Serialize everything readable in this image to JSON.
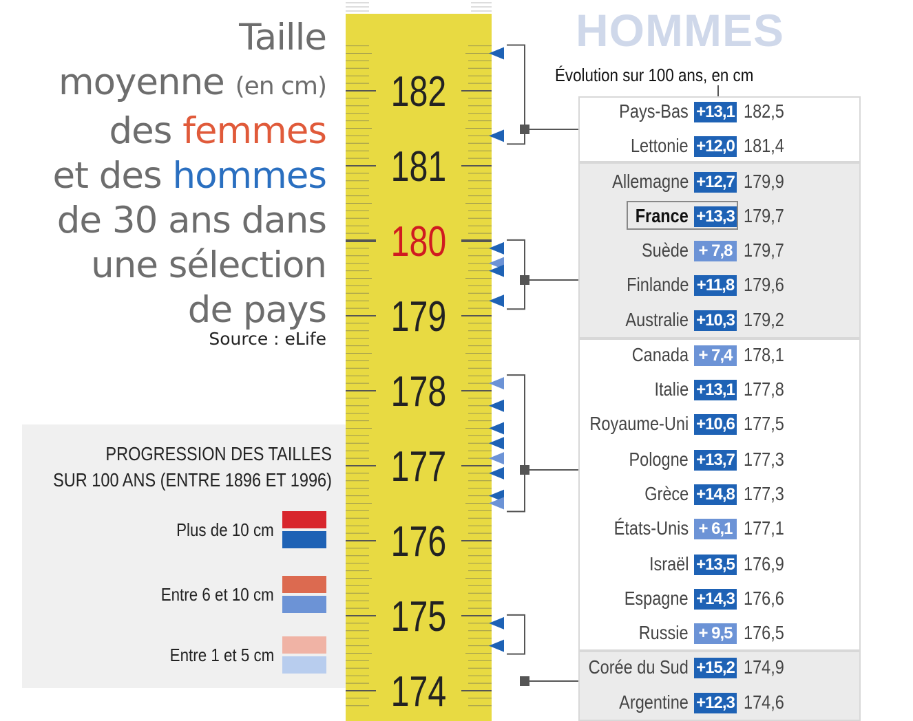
{
  "title": {
    "line1": "Taille",
    "line2_main": "moyenne",
    "line2_small": "(en cm)",
    "line3_prefix": "des ",
    "line3_word": "femmes",
    "line4_prefix": "et des ",
    "line4_word": "hommes",
    "line5": "de 30 ans dans",
    "line6": "une sélection",
    "line7": "de pays",
    "source": "Source : eLife"
  },
  "legend": {
    "title_line1": "PROGRESSION DES TAILLES",
    "title_line2": "SUR 100 ANS (ENTRE 1896 ET 1996)",
    "items": [
      {
        "label": "Plus de 10 cm",
        "colors": [
          "#d8262d",
          "#1e62b5"
        ]
      },
      {
        "label": "Entre 6 et 10 cm",
        "colors": [
          "#dc6a50",
          "#6c93d6"
        ]
      },
      {
        "label": "Entre 1 et 5 cm",
        "colors": [
          "#f0b3a5",
          "#b8cdee"
        ]
      }
    ]
  },
  "colors": {
    "ruler_yellow": "#e8da42",
    "highlight_tick": "#d01b20",
    "badge_strong": "#1e62b5",
    "badge_medium": "#6c93d6",
    "bracket": "#555555"
  },
  "right_panel": {
    "title": "HOMMES",
    "subtitle": "Évolution sur 100 ans, en cm"
  },
  "chart_data": {
    "type": "table",
    "title": "HOMMES",
    "subtitle": "Évolution sur 100 ans, en cm",
    "ruler_ticks": [
      "182",
      "181",
      "180",
      "179",
      "178",
      "177",
      "176",
      "175",
      "174"
    ],
    "highlight_tick": "180",
    "ylim": [
      173.8,
      182.6
    ],
    "unit": "cm",
    "rows": [
      {
        "country": "Pays-Bas",
        "progress": "+13,1",
        "progress_value": 13.1,
        "height": "182,5",
        "height_value": 182.5
      },
      {
        "country": "Lettonie",
        "progress": "+12,0",
        "progress_value": 12.0,
        "height": "181,4",
        "height_value": 181.4
      },
      {
        "country": "Allemagne",
        "progress": "+12,7",
        "progress_value": 12.7,
        "height": "179,9",
        "height_value": 179.9
      },
      {
        "country": "France",
        "progress": "+13,3",
        "progress_value": 13.3,
        "height": "179,7",
        "height_value": 179.7,
        "highlight": true
      },
      {
        "country": "Suède",
        "progress": "+ 7,8",
        "progress_value": 7.8,
        "height": "179,7",
        "height_value": 179.7
      },
      {
        "country": "Finlande",
        "progress": "+11,8",
        "progress_value": 11.8,
        "height": "179,6",
        "height_value": 179.6
      },
      {
        "country": "Australie",
        "progress": "+10,3",
        "progress_value": 10.3,
        "height": "179,2",
        "height_value": 179.2
      },
      {
        "country": "Canada",
        "progress": "+ 7,4",
        "progress_value": 7.4,
        "height": "178,1",
        "height_value": 178.1
      },
      {
        "country": "Italie",
        "progress": "+13,1",
        "progress_value": 13.1,
        "height": "177,8",
        "height_value": 177.8
      },
      {
        "country": "Royaume-Uni",
        "progress": "+10,6",
        "progress_value": 10.6,
        "height": "177,5",
        "height_value": 177.5
      },
      {
        "country": "Pologne",
        "progress": "+13,7",
        "progress_value": 13.7,
        "height": "177,3",
        "height_value": 177.3
      },
      {
        "country": "Grèce",
        "progress": "+14,8",
        "progress_value": 14.8,
        "height": "177,3",
        "height_value": 177.3
      },
      {
        "country": "États-Unis",
        "progress": "+ 6,1",
        "progress_value": 6.1,
        "height": "177,1",
        "height_value": 177.1
      },
      {
        "country": "Israël",
        "progress": "+13,5",
        "progress_value": 13.5,
        "height": "176,9",
        "height_value": 176.9
      },
      {
        "country": "Espagne",
        "progress": "+14,3",
        "progress_value": 14.3,
        "height": "176,6",
        "height_value": 176.6
      },
      {
        "country": "Russie",
        "progress": "+ 9,5",
        "progress_value": 9.5,
        "height": "176,5",
        "height_value": 176.5
      },
      {
        "country": "Corée du Sud",
        "progress": "+15,2",
        "progress_value": 15.2,
        "height": "174,9",
        "height_value": 174.9
      },
      {
        "country": "Argentine",
        "progress": "+12,3",
        "progress_value": 12.3,
        "height": "174,6",
        "height_value": 174.6
      }
    ]
  }
}
